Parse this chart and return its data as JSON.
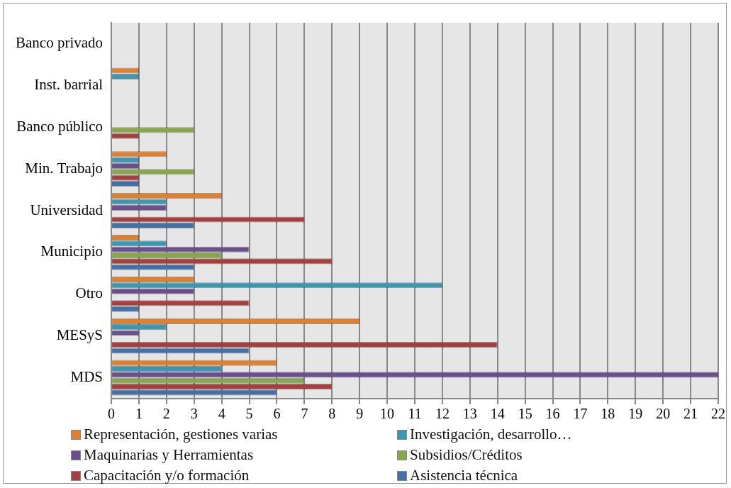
{
  "chart_data": {
    "type": "bar",
    "orientation": "horizontal",
    "categories": [
      "Banco privado",
      "Inst. barrial",
      "Banco público",
      "Min. Trabajo",
      "Universidad",
      "Municipio",
      "Otro",
      "MESyS",
      "MDS"
    ],
    "series": [
      {
        "name": "Representación, gestiones varias",
        "color": "#e07f2e",
        "values": [
          0,
          1,
          0,
          2,
          4,
          1,
          3,
          9,
          6
        ]
      },
      {
        "name": "Investigación, desarrollo…",
        "color": "#3d97b0",
        "values": [
          0,
          1,
          0,
          1,
          2,
          2,
          12,
          2,
          4
        ]
      },
      {
        "name": "Maquinarias y Herramientas",
        "color": "#6a4f8f",
        "values": [
          0,
          0,
          0,
          1,
          2,
          5,
          3,
          1,
          22
        ]
      },
      {
        "name": "Subsidios/Créditos",
        "color": "#86a84a",
        "values": [
          0,
          0,
          3,
          3,
          0,
          4,
          0,
          0,
          7
        ]
      },
      {
        "name": "Capacitación y/o formación",
        "color": "#a63f3e",
        "values": [
          0,
          0,
          1,
          1,
          7,
          8,
          5,
          14,
          8
        ]
      },
      {
        "name": "Asistencia técnica",
        "color": "#4470a8",
        "values": [
          0,
          0,
          0,
          1,
          3,
          3,
          1,
          5,
          6
        ]
      }
    ],
    "xlim": [
      0,
      22
    ],
    "xticks": [
      0,
      1,
      2,
      3,
      4,
      5,
      6,
      7,
      8,
      9,
      10,
      11,
      12,
      13,
      14,
      15,
      16,
      17,
      18,
      19,
      20,
      21,
      22
    ],
    "grid": "x",
    "legend": "bottom"
  }
}
